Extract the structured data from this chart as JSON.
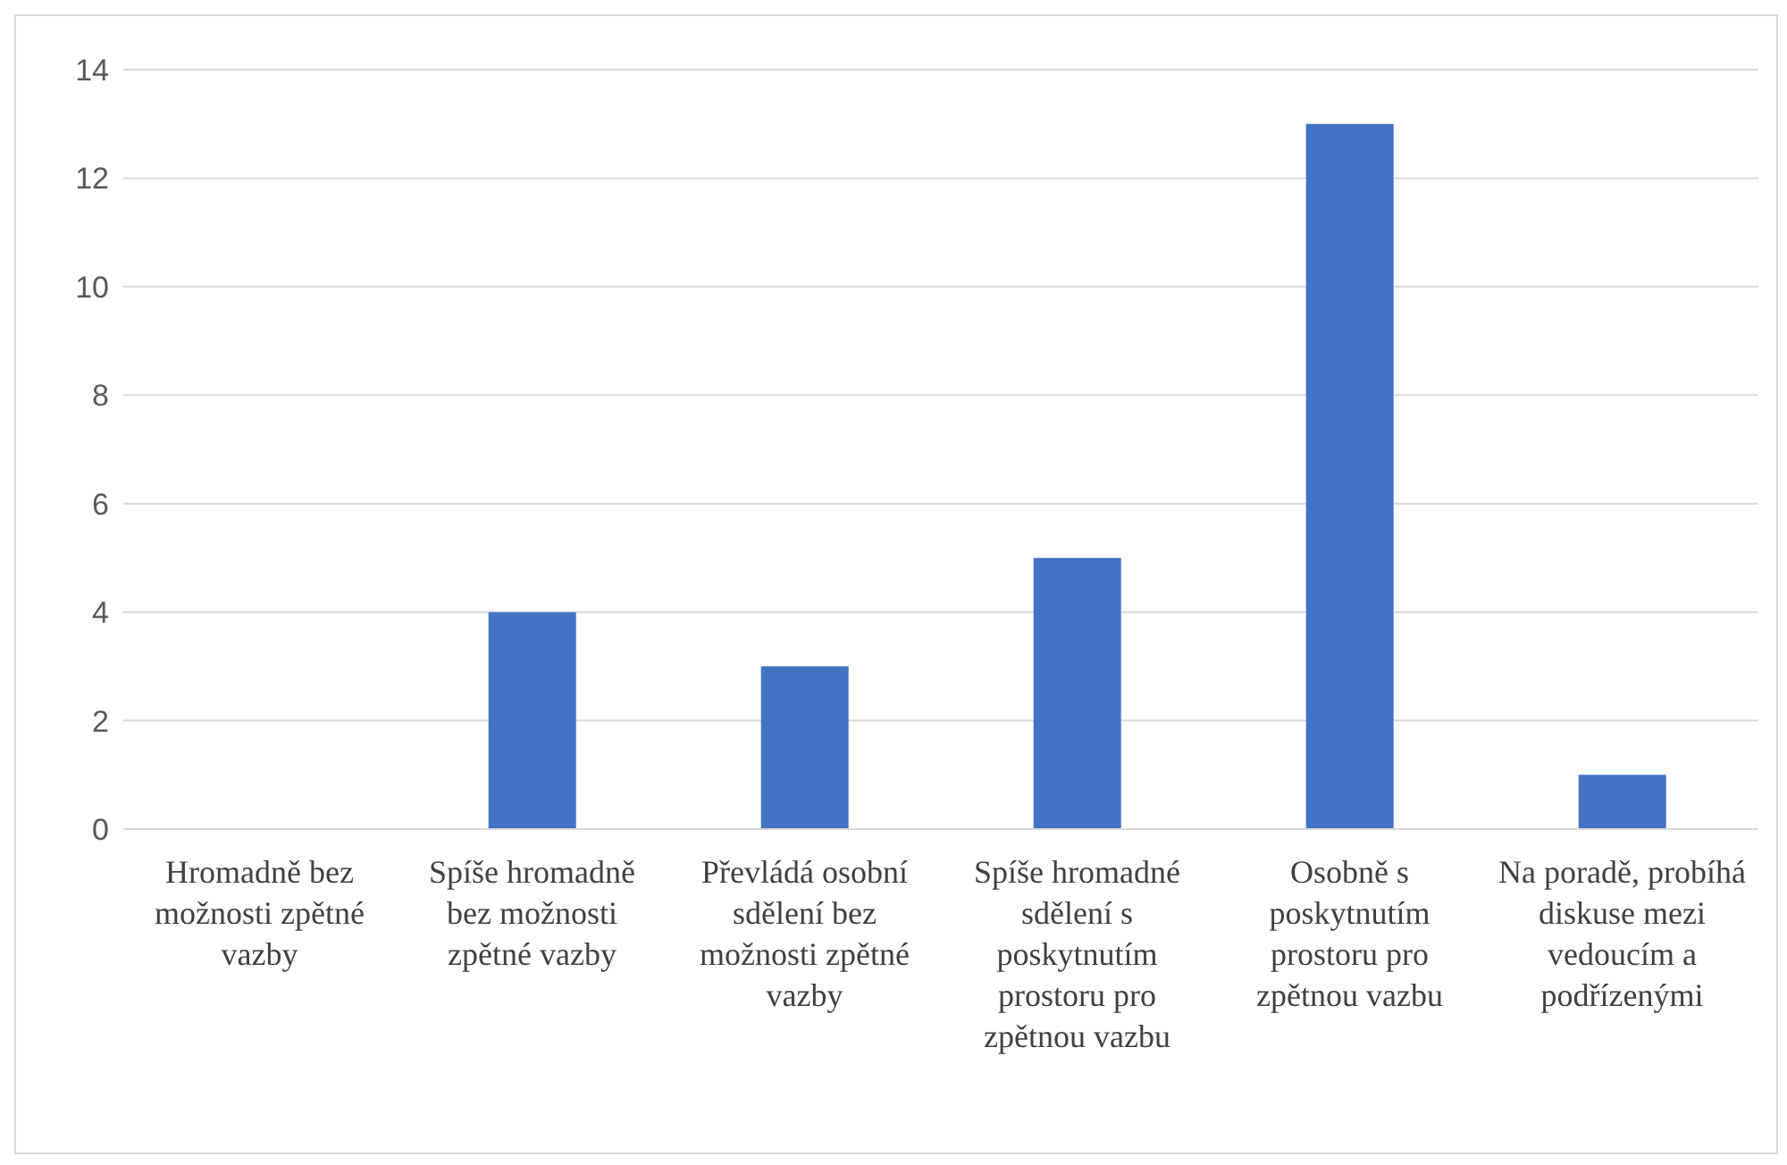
{
  "chart_data": {
    "type": "bar",
    "categories": [
      "Hromadně bez možnosti zpětné vazby",
      "Spíše hromadně bez možnosti zpětné vazby",
      "Převládá osobní sdělení bez možnosti zpětné vazby",
      "Spíše hromadné sdělení s poskytnutím prostoru pro zpětnou vazbu",
      "Osobně s poskytnutím prostoru pro zpětnou vazbu",
      "Na poradě, probíhá diskuse mezi vedoucím a podřízenými"
    ],
    "values": [
      0,
      4,
      3,
      5,
      13,
      1
    ],
    "color": "#4472c4",
    "ylim": [
      0,
      14
    ],
    "yticks": [
      0,
      2,
      4,
      6,
      8,
      10,
      12,
      14
    ],
    "grid": "y",
    "legend": false
  }
}
